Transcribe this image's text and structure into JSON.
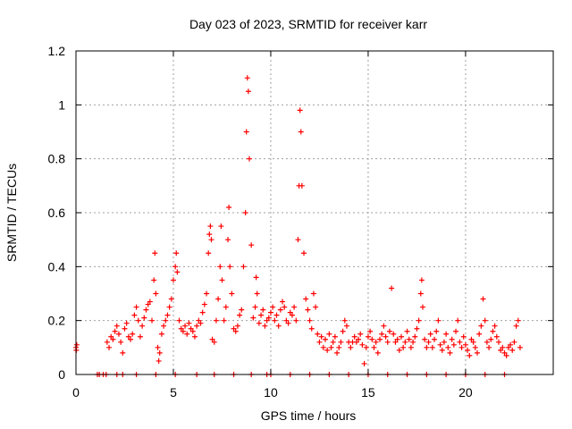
{
  "chart_data": {
    "type": "scatter",
    "title": "Day 023 of 2023, SRMTID for receiver karr",
    "xlabel": "GPS time / hours",
    "ylabel": "SRMTID / TECUs",
    "xlim": [
      0,
      24.5
    ],
    "ylim": [
      0,
      1.2
    ],
    "x_ticks": [
      0,
      5,
      10,
      15,
      20
    ],
    "x_tick_labels": [
      "0",
      "5",
      "10",
      "15",
      "20"
    ],
    "y_ticks": [
      0,
      0.2,
      0.4,
      0.6,
      0.8,
      1.0,
      1.2
    ],
    "y_tick_labels": [
      "0",
      "0.2",
      "0.4",
      "0.6",
      "0.8",
      "1",
      "1.2"
    ],
    "grid": true,
    "marker": "+",
    "series": [
      {
        "name": "SRMTID",
        "color": "#ff0000",
        "points": [
          [
            0.0,
            0.1
          ],
          [
            0.02,
            0.09
          ],
          [
            0.04,
            0.11
          ],
          [
            1.2,
            0.0
          ],
          [
            1.4,
            0.0
          ],
          [
            1.6,
            0.12
          ],
          [
            1.7,
            0.1
          ],
          [
            1.8,
            0.14
          ],
          [
            1.9,
            0.13
          ],
          [
            2.0,
            0.16
          ],
          [
            2.1,
            0.18
          ],
          [
            2.2,
            0.15
          ],
          [
            2.3,
            0.12
          ],
          [
            2.4,
            0.08
          ],
          [
            2.5,
            0.17
          ],
          [
            2.6,
            0.19
          ],
          [
            2.7,
            0.14
          ],
          [
            2.8,
            0.13
          ],
          [
            2.9,
            0.15
          ],
          [
            3.0,
            0.22
          ],
          [
            3.1,
            0.25
          ],
          [
            3.2,
            0.2
          ],
          [
            3.3,
            0.14
          ],
          [
            3.4,
            0.18
          ],
          [
            3.5,
            0.21
          ],
          [
            3.6,
            0.24
          ],
          [
            3.7,
            0.26
          ],
          [
            3.8,
            0.27
          ],
          [
            3.9,
            0.2
          ],
          [
            4.0,
            0.35
          ],
          [
            4.05,
            0.45
          ],
          [
            4.1,
            0.3
          ],
          [
            4.2,
            0.1
          ],
          [
            4.25,
            0.05
          ],
          [
            4.3,
            0.08
          ],
          [
            4.4,
            0.15
          ],
          [
            4.5,
            0.18
          ],
          [
            4.6,
            0.2
          ],
          [
            4.7,
            0.22
          ],
          [
            4.8,
            0.25
          ],
          [
            4.9,
            0.28
          ],
          [
            5.0,
            0.35
          ],
          [
            5.1,
            0.4
          ],
          [
            5.15,
            0.45
          ],
          [
            5.2,
            0.38
          ],
          [
            5.3,
            0.2
          ],
          [
            5.4,
            0.17
          ],
          [
            5.5,
            0.16
          ],
          [
            5.6,
            0.18
          ],
          [
            5.7,
            0.15
          ],
          [
            5.8,
            0.19
          ],
          [
            5.9,
            0.17
          ],
          [
            6.0,
            0.16
          ],
          [
            6.1,
            0.14
          ],
          [
            6.2,
            0.18
          ],
          [
            6.3,
            0.2
          ],
          [
            6.4,
            0.19
          ],
          [
            6.5,
            0.23
          ],
          [
            6.6,
            0.26
          ],
          [
            6.7,
            0.3
          ],
          [
            6.8,
            0.45
          ],
          [
            6.85,
            0.52
          ],
          [
            6.9,
            0.55
          ],
          [
            6.95,
            0.5
          ],
          [
            7.0,
            0.13
          ],
          [
            7.1,
            0.12
          ],
          [
            7.2,
            0.2
          ],
          [
            7.3,
            0.28
          ],
          [
            7.4,
            0.4
          ],
          [
            7.45,
            0.55
          ],
          [
            7.5,
            0.35
          ],
          [
            7.6,
            0.2
          ],
          [
            7.7,
            0.25
          ],
          [
            7.8,
            0.5
          ],
          [
            7.85,
            0.62
          ],
          [
            7.9,
            0.4
          ],
          [
            8.0,
            0.3
          ],
          [
            8.1,
            0.17
          ],
          [
            8.2,
            0.16
          ],
          [
            8.3,
            0.18
          ],
          [
            8.4,
            0.22
          ],
          [
            8.5,
            0.24
          ],
          [
            8.6,
            0.4
          ],
          [
            8.7,
            0.6
          ],
          [
            8.75,
            0.9
          ],
          [
            8.8,
            1.1
          ],
          [
            8.85,
            1.05
          ],
          [
            8.9,
            0.8
          ],
          [
            9.0,
            0.48
          ],
          [
            9.1,
            0.21
          ],
          [
            9.2,
            0.25
          ],
          [
            9.25,
            0.36
          ],
          [
            9.3,
            0.3
          ],
          [
            9.4,
            0.19
          ],
          [
            9.5,
            0.22
          ],
          [
            9.6,
            0.24
          ],
          [
            9.7,
            0.18
          ],
          [
            9.8,
            0.2
          ],
          [
            9.9,
            0.21
          ],
          [
            10.0,
            0.23
          ],
          [
            10.1,
            0.25
          ],
          [
            10.2,
            0.2
          ],
          [
            10.3,
            0.22
          ],
          [
            10.4,
            0.18
          ],
          [
            10.5,
            0.24
          ],
          [
            10.6,
            0.27
          ],
          [
            10.7,
            0.25
          ],
          [
            10.8,
            0.2
          ],
          [
            10.9,
            0.19
          ],
          [
            11.0,
            0.23
          ],
          [
            11.1,
            0.22
          ],
          [
            11.2,
            0.25
          ],
          [
            11.3,
            0.2
          ],
          [
            11.4,
            0.5
          ],
          [
            11.45,
            0.7
          ],
          [
            11.5,
            0.98
          ],
          [
            11.55,
            0.9
          ],
          [
            11.6,
            0.7
          ],
          [
            11.7,
            0.45
          ],
          [
            11.8,
            0.28
          ],
          [
            11.9,
            0.24
          ],
          [
            12.0,
            0.2
          ],
          [
            12.1,
            0.17
          ],
          [
            12.2,
            0.3
          ],
          [
            12.3,
            0.25
          ],
          [
            12.4,
            0.15
          ],
          [
            12.5,
            0.12
          ],
          [
            12.6,
            0.14
          ],
          [
            12.7,
            0.1
          ],
          [
            12.8,
            0.13
          ],
          [
            12.9,
            0.09
          ],
          [
            13.0,
            0.15
          ],
          [
            13.1,
            0.1
          ],
          [
            13.2,
            0.12
          ],
          [
            13.3,
            0.14
          ],
          [
            13.4,
            0.08
          ],
          [
            13.5,
            0.1
          ],
          [
            13.6,
            0.12
          ],
          [
            13.7,
            0.16
          ],
          [
            13.8,
            0.2
          ],
          [
            13.9,
            0.18
          ],
          [
            14.0,
            0.12
          ],
          [
            14.1,
            0.1
          ],
          [
            14.2,
            0.12
          ],
          [
            14.3,
            0.14
          ],
          [
            14.4,
            0.12
          ],
          [
            14.5,
            0.13
          ],
          [
            14.6,
            0.15
          ],
          [
            14.7,
            0.11
          ],
          [
            14.8,
            0.04
          ],
          [
            14.9,
            0.1
          ],
          [
            15.0,
            0.14
          ],
          [
            15.1,
            0.16
          ],
          [
            15.2,
            0.13
          ],
          [
            15.3,
            0.1
          ],
          [
            15.4,
            0.12
          ],
          [
            15.5,
            0.08
          ],
          [
            15.6,
            0.13
          ],
          [
            15.7,
            0.15
          ],
          [
            15.8,
            0.18
          ],
          [
            15.9,
            0.14
          ],
          [
            16.0,
            0.12
          ],
          [
            16.1,
            0.16
          ],
          [
            16.2,
            0.32
          ],
          [
            16.3,
            0.15
          ],
          [
            16.4,
            0.12
          ],
          [
            16.5,
            0.13
          ],
          [
            16.6,
            0.09
          ],
          [
            16.7,
            0.14
          ],
          [
            16.8,
            0.1
          ],
          [
            16.9,
            0.12
          ],
          [
            17.0,
            0.16
          ],
          [
            17.1,
            0.13
          ],
          [
            17.2,
            0.1
          ],
          [
            17.3,
            0.12
          ],
          [
            17.4,
            0.14
          ],
          [
            17.5,
            0.17
          ],
          [
            17.6,
            0.2
          ],
          [
            17.7,
            0.3
          ],
          [
            17.75,
            0.35
          ],
          [
            17.8,
            0.25
          ],
          [
            17.9,
            0.13
          ],
          [
            18.0,
            0.1
          ],
          [
            18.1,
            0.12
          ],
          [
            18.2,
            0.15
          ],
          [
            18.3,
            0.1
          ],
          [
            18.4,
            0.13
          ],
          [
            18.5,
            0.16
          ],
          [
            18.6,
            0.2
          ],
          [
            18.7,
            0.11
          ],
          [
            18.8,
            0.09
          ],
          [
            18.9,
            0.12
          ],
          [
            19.0,
            0.15
          ],
          [
            19.1,
            0.1
          ],
          [
            19.2,
            0.08
          ],
          [
            19.3,
            0.13
          ],
          [
            19.4,
            0.11
          ],
          [
            19.5,
            0.16
          ],
          [
            19.6,
            0.2
          ],
          [
            19.7,
            0.12
          ],
          [
            19.8,
            0.1
          ],
          [
            19.9,
            0.14
          ],
          [
            20.0,
            0.11
          ],
          [
            20.1,
            0.09
          ],
          [
            20.2,
            0.07
          ],
          [
            20.3,
            0.13
          ],
          [
            20.4,
            0.12
          ],
          [
            20.5,
            0.1
          ],
          [
            20.6,
            0.08
          ],
          [
            20.7,
            0.15
          ],
          [
            20.8,
            0.18
          ],
          [
            20.9,
            0.28
          ],
          [
            21.0,
            0.2
          ],
          [
            21.1,
            0.12
          ],
          [
            21.2,
            0.1
          ],
          [
            21.3,
            0.13
          ],
          [
            21.4,
            0.16
          ],
          [
            21.5,
            0.18
          ],
          [
            21.6,
            0.14
          ],
          [
            21.7,
            0.12
          ],
          [
            21.8,
            0.09
          ],
          [
            21.9,
            0.1
          ],
          [
            22.0,
            0.08
          ],
          [
            22.1,
            0.07
          ],
          [
            22.2,
            0.1
          ],
          [
            22.3,
            0.11
          ],
          [
            22.4,
            0.09
          ],
          [
            22.5,
            0.12
          ],
          [
            22.6,
            0.18
          ],
          [
            22.7,
            0.2
          ],
          [
            22.8,
            0.1
          ],
          [
            1.1,
            0.0
          ],
          [
            1.55,
            0.0
          ],
          [
            2.1,
            0.0
          ],
          [
            2.4,
            0.0
          ],
          [
            3.1,
            0.0
          ],
          [
            4.1,
            0.0
          ],
          [
            5.1,
            0.0
          ],
          [
            6.2,
            0.0
          ],
          [
            7.1,
            0.0
          ],
          [
            8.1,
            0.0
          ],
          [
            9.0,
            0.0
          ],
          [
            9.8,
            0.0
          ],
          [
            10.0,
            0.0
          ],
          [
            11.0,
            0.0
          ],
          [
            12.0,
            0.0
          ],
          [
            13.0,
            0.0
          ],
          [
            14.0,
            0.0
          ],
          [
            15.0,
            0.0
          ],
          [
            16.0,
            0.0
          ],
          [
            17.0,
            0.0
          ],
          [
            18.0,
            0.0
          ],
          [
            19.0,
            0.0
          ],
          [
            20.0,
            0.0
          ],
          [
            21.0,
            0.0
          ],
          [
            22.0,
            0.0
          ]
        ]
      }
    ]
  }
}
